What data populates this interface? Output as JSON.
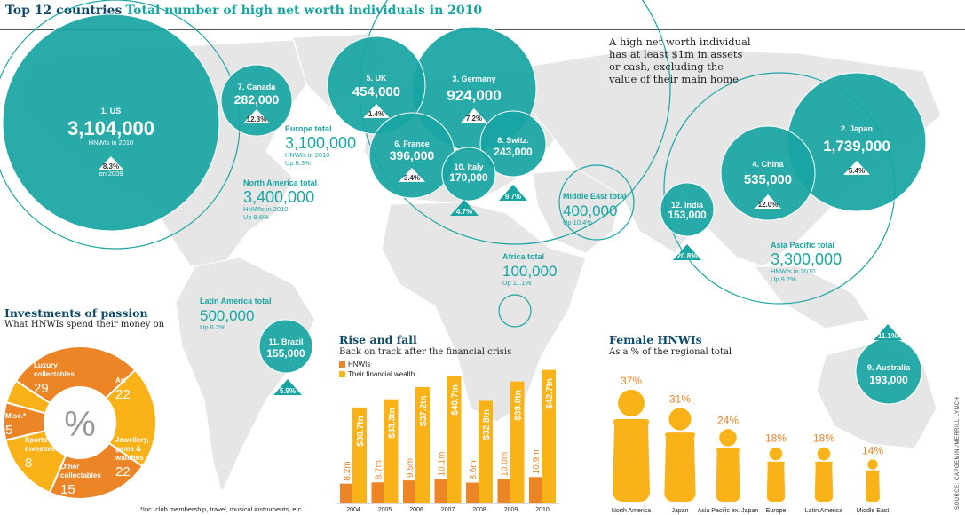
{
  "title": {
    "main": "Top 12 countries",
    "sub": "Total number of high net worth individuals in 2010"
  },
  "intro": "A high net worth individual has at least $1m in assets or cash, excluding the value of their main home",
  "colors": {
    "teal": "#19a5a2",
    "orange": "#ec8526",
    "yellow": "#f9b218",
    "map": "#e6e6e6",
    "navy": "#0f4a6b"
  },
  "countries": [
    {
      "rank": "1. US",
      "value": "3,104,000",
      "sub": "HNWIs in 2010",
      "change": "8.3%",
      "change_note": "on 2009"
    },
    {
      "rank": "2. Japan",
      "value": "1,739,000",
      "change": "5.4%"
    },
    {
      "rank": "3. Germany",
      "value": "924,000",
      "change": "7.2%"
    },
    {
      "rank": "4. China",
      "value": "535,000",
      "change": "12.0%"
    },
    {
      "rank": "5. UK",
      "value": "454,000",
      "change": "1.4%"
    },
    {
      "rank": "6. France",
      "value": "396,000",
      "change": "3.4%"
    },
    {
      "rank": "7. Canada",
      "value": "282,000",
      "change": "12.3%"
    },
    {
      "rank": "8. Switz.",
      "value": "243,000",
      "change": "9.7%"
    },
    {
      "rank": "9. Australia",
      "value": "193,000",
      "change": "11.1%"
    },
    {
      "rank": "10. Italy",
      "value": "170,000",
      "change": "4.7%"
    },
    {
      "rank": "11. Brazil",
      "value": "155,000",
      "change": "5.9%"
    },
    {
      "rank": "12. India",
      "value": "153,000",
      "change": "20.8%"
    }
  ],
  "regions": [
    {
      "name": "North America total",
      "value": "3,400,000",
      "l1": "HNWIs in 2010",
      "l2": "Up 8.6%"
    },
    {
      "name": "Europe total",
      "value": "3,100,000",
      "l1": "HNWIs in 2010",
      "l2": "Up 6.3%"
    },
    {
      "name": "Middle East total",
      "value": "400,000",
      "l1": "Up 10.4%"
    },
    {
      "name": "Africa total",
      "value": "100,000",
      "l1": "Up 11.1%"
    },
    {
      "name": "Asia Pacific total",
      "value": "3,300,000",
      "l1": "HNWIs in 2010",
      "l2": "Up 9.7%"
    },
    {
      "name": "Latin America total",
      "value": "500,000",
      "l1": "Up 6.2%"
    }
  ],
  "passion": {
    "title": "Investments of passion",
    "subtitle": "What HNWIs spend their money on",
    "center": "%",
    "footnote": "*Inc. club membership, travel, musical instruments, etc."
  },
  "rise": {
    "title": "Rise and fall",
    "subtitle": "Back on track after the financial crisis",
    "legend_hnwi": "HNWIs",
    "legend_wealth": "Their financial wealth"
  },
  "female": {
    "title": "Female HNWIs",
    "subtitle": "As a % of the regional total"
  },
  "source": "SOURCE: CAPGEMINI/MERRILL LYNCH",
  "chart_data": [
    {
      "type": "pie",
      "title": "Investments of passion",
      "categories": [
        "Luxury collectables",
        "Art",
        "Jewellery, gems & watches",
        "Other collectables",
        "Sports investments",
        "Misc.*"
      ],
      "values": [
        29,
        22,
        22,
        15,
        8,
        5
      ]
    },
    {
      "type": "bar",
      "title": "Rise and fall",
      "categories": [
        "2004",
        "2005",
        "2006",
        "2007",
        "2008",
        "2009",
        "2010"
      ],
      "series": [
        {
          "name": "HNWIs",
          "unit": "m",
          "values": [
            8.2,
            8.7,
            9.5,
            10.1,
            8.6,
            10.0,
            10.9
          ],
          "labels": [
            "8.2m",
            "8.7m",
            "9.5m",
            "10.1m",
            "8.6m",
            "10.0m",
            "10.9m"
          ]
        },
        {
          "name": "Their financial wealth",
          "unit": "$tn",
          "values": [
            30.7,
            33.3,
            37.2,
            40.7,
            32.8,
            39.0,
            42.7
          ],
          "labels": [
            "$30.7tn",
            "$33.3tn",
            "$37.2tn",
            "$40.7tn",
            "$32.8tn",
            "$39.0tn",
            "$42.7tn"
          ]
        }
      ]
    },
    {
      "type": "bar",
      "title": "Female HNWIs",
      "categories": [
        "North America",
        "Japan",
        "Asia Pacific ex. Japan",
        "Europe",
        "Latin America",
        "Middle East"
      ],
      "values": [
        37,
        31,
        24,
        18,
        18,
        14
      ],
      "labels": [
        "37%",
        "31%",
        "24%",
        "18%",
        "18%",
        "14%"
      ]
    }
  ]
}
